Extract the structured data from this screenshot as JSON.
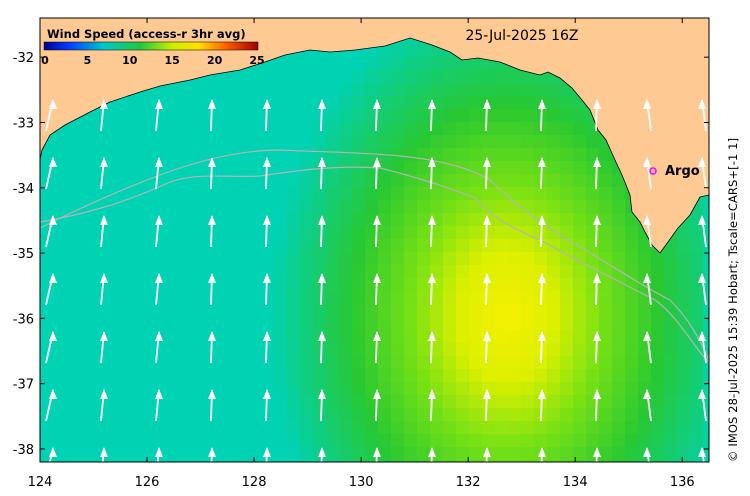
{
  "map": {
    "title": "25-Jul-2025 16Z",
    "colorbar": {
      "title": "Wind Speed (access-r 3hr avg)",
      "ticks": [
        "0",
        "5",
        "10",
        "15",
        "20",
        "25"
      ],
      "range": [
        0,
        25
      ]
    },
    "longitude_ticks": [
      "124",
      "126",
      "128",
      "130",
      "132",
      "134",
      "136"
    ],
    "latitude_ticks": [
      "-32",
      "-33",
      "-34",
      "-35",
      "-36",
      "-37",
      "-38"
    ],
    "lon_range": [
      124,
      136.5
    ],
    "lat_range": [
      -38.2,
      -31.4
    ],
    "marker": {
      "label": "Argo",
      "lon": 135.5,
      "lat": -33.6
    },
    "credit": "© IMOS 28-Jul-2025 15:39 Hobart; Tscale=CARS+[-1 1]",
    "colors": {
      "land": "#ffc993",
      "ocean_low": "#00d2b4",
      "ocean_mid": "#28c832",
      "ocean_high": "#f0f000",
      "marker": "#ff00ff",
      "arrow": "#ffffff",
      "contour": "#b4b4b4"
    },
    "wind_direction": "toward north"
  }
}
